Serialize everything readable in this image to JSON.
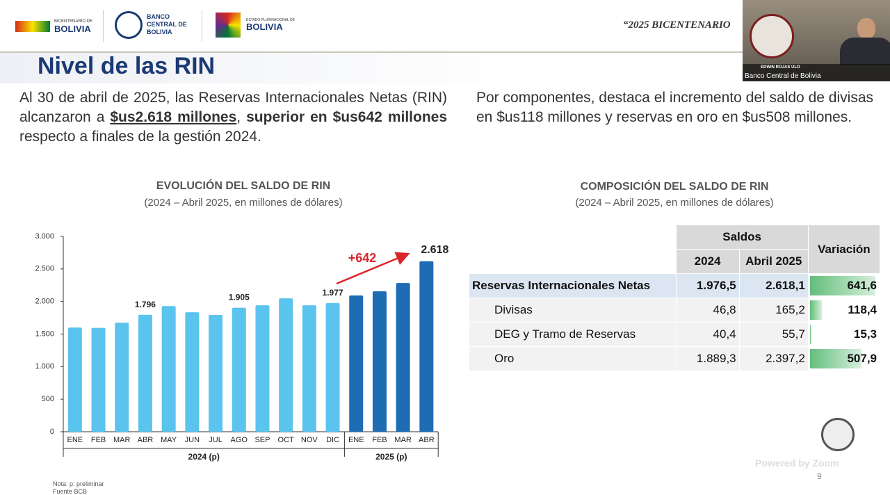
{
  "header": {
    "logo1_small": "BICENTENARIO DE",
    "logo1": "BOLIVIA",
    "bank_lines": [
      "BANCO",
      "CENTRAL DE",
      "BOLIVIA"
    ],
    "logo3_small": "ESTADO PLURINACIONAL DE",
    "logo3": "BOLIVIA",
    "slogan": "“2025 BICENTENARIO"
  },
  "title": "Nivel de las RIN",
  "intro_left": [
    {
      "text": "Al 30 de abril de 2025, las Reservas Internacionales Netas (RIN) alcanzaron a ",
      "bold": false,
      "underline": false
    },
    {
      "text": "$us2.618 millones",
      "bold": true,
      "underline": true
    },
    {
      "text": ", ",
      "bold": false,
      "underline": false
    },
    {
      "text": "superior en $us642 millones",
      "bold": true,
      "underline": false
    },
    {
      "text": " respecto a finales de la gestión 2024.",
      "bold": false,
      "underline": false
    }
  ],
  "intro_right": "Por componentes, destaca el incremento del saldo de divisas en $us118 millones y reservas en oro en $us508 millones.",
  "chart_data": {
    "type": "bar",
    "title": "EVOLUCIÓN DEL SALDO DE RIN",
    "subtitle": "(2024 – Abril 2025, en millones de dólares)",
    "groups": [
      {
        "label": "2024 (p)",
        "color": "#5bc4ee",
        "categories": [
          "ENE",
          "FEB",
          "MAR",
          "ABR",
          "MAY",
          "JUN",
          "JUL",
          "AGO",
          "SEP",
          "OCT",
          "NOV",
          "DIC"
        ],
        "values": [
          1600,
          1595,
          1675,
          1796,
          1930,
          1835,
          1793,
          1905,
          1942,
          2049,
          1942,
          1977
        ],
        "value_labels": [
          null,
          null,
          null,
          "1.796",
          null,
          null,
          null,
          "1.905",
          null,
          null,
          null,
          "1.977"
        ]
      },
      {
        "label": "2025 (p)",
        "color": "#1e6cb4",
        "categories": [
          "ENE",
          "FEB",
          "MAR",
          "ABR"
        ],
        "values": [
          2092,
          2156,
          2284,
          2618
        ],
        "value_labels": [
          null,
          null,
          null,
          "2.618"
        ]
      }
    ],
    "ylim": [
      0,
      3000
    ],
    "yticks": [
      0,
      500,
      {
        "value": 1000,
        "label": "1.000"
      },
      {
        "value": 1500,
        "label": "1.500"
      },
      {
        "value": 2000,
        "label": "2.000"
      },
      {
        "value": 2500,
        "label": "2.500"
      },
      {
        "value": 3000,
        "label": "3.000"
      }
    ],
    "annotation": "+642"
  },
  "table": {
    "title": "COMPOSICIÓN DEL SALDO DE RIN",
    "subtitle": "(2024 – Abril 2025, en millones de dólares)",
    "header": {
      "saldos": "Saldos",
      "col2024": "2024",
      "col2025": "Abril 2025",
      "variation": "Variación"
    },
    "rows": [
      {
        "name": "Reservas Internacionales Netas",
        "y2024": "1.976,5",
        "y2025": "2.618,1",
        "variation": 641.6,
        "variation_label": "641,6"
      },
      {
        "name": "Divisas",
        "y2024": "46,8",
        "y2025": "165,2",
        "variation": 118.4,
        "variation_label": "118,4"
      },
      {
        "name": "DEG y Tramo de Reservas",
        "y2024": "40,4",
        "y2025": "55,7",
        "variation": 15.3,
        "variation_label": "15,3"
      },
      {
        "name": "Oro",
        "y2024": "1.889,3",
        "y2025": "2.397,2",
        "variation": 507.9,
        "variation_label": "507,9"
      }
    ]
  },
  "notes": [
    "Nota: p: preliminar",
    "Fuente BCB"
  ],
  "video": {
    "name": "EDWIN ROJAS ULO",
    "org": "Banco Central de Bolivia",
    "powered": "Powered by Zoom"
  },
  "page_number": "9"
}
